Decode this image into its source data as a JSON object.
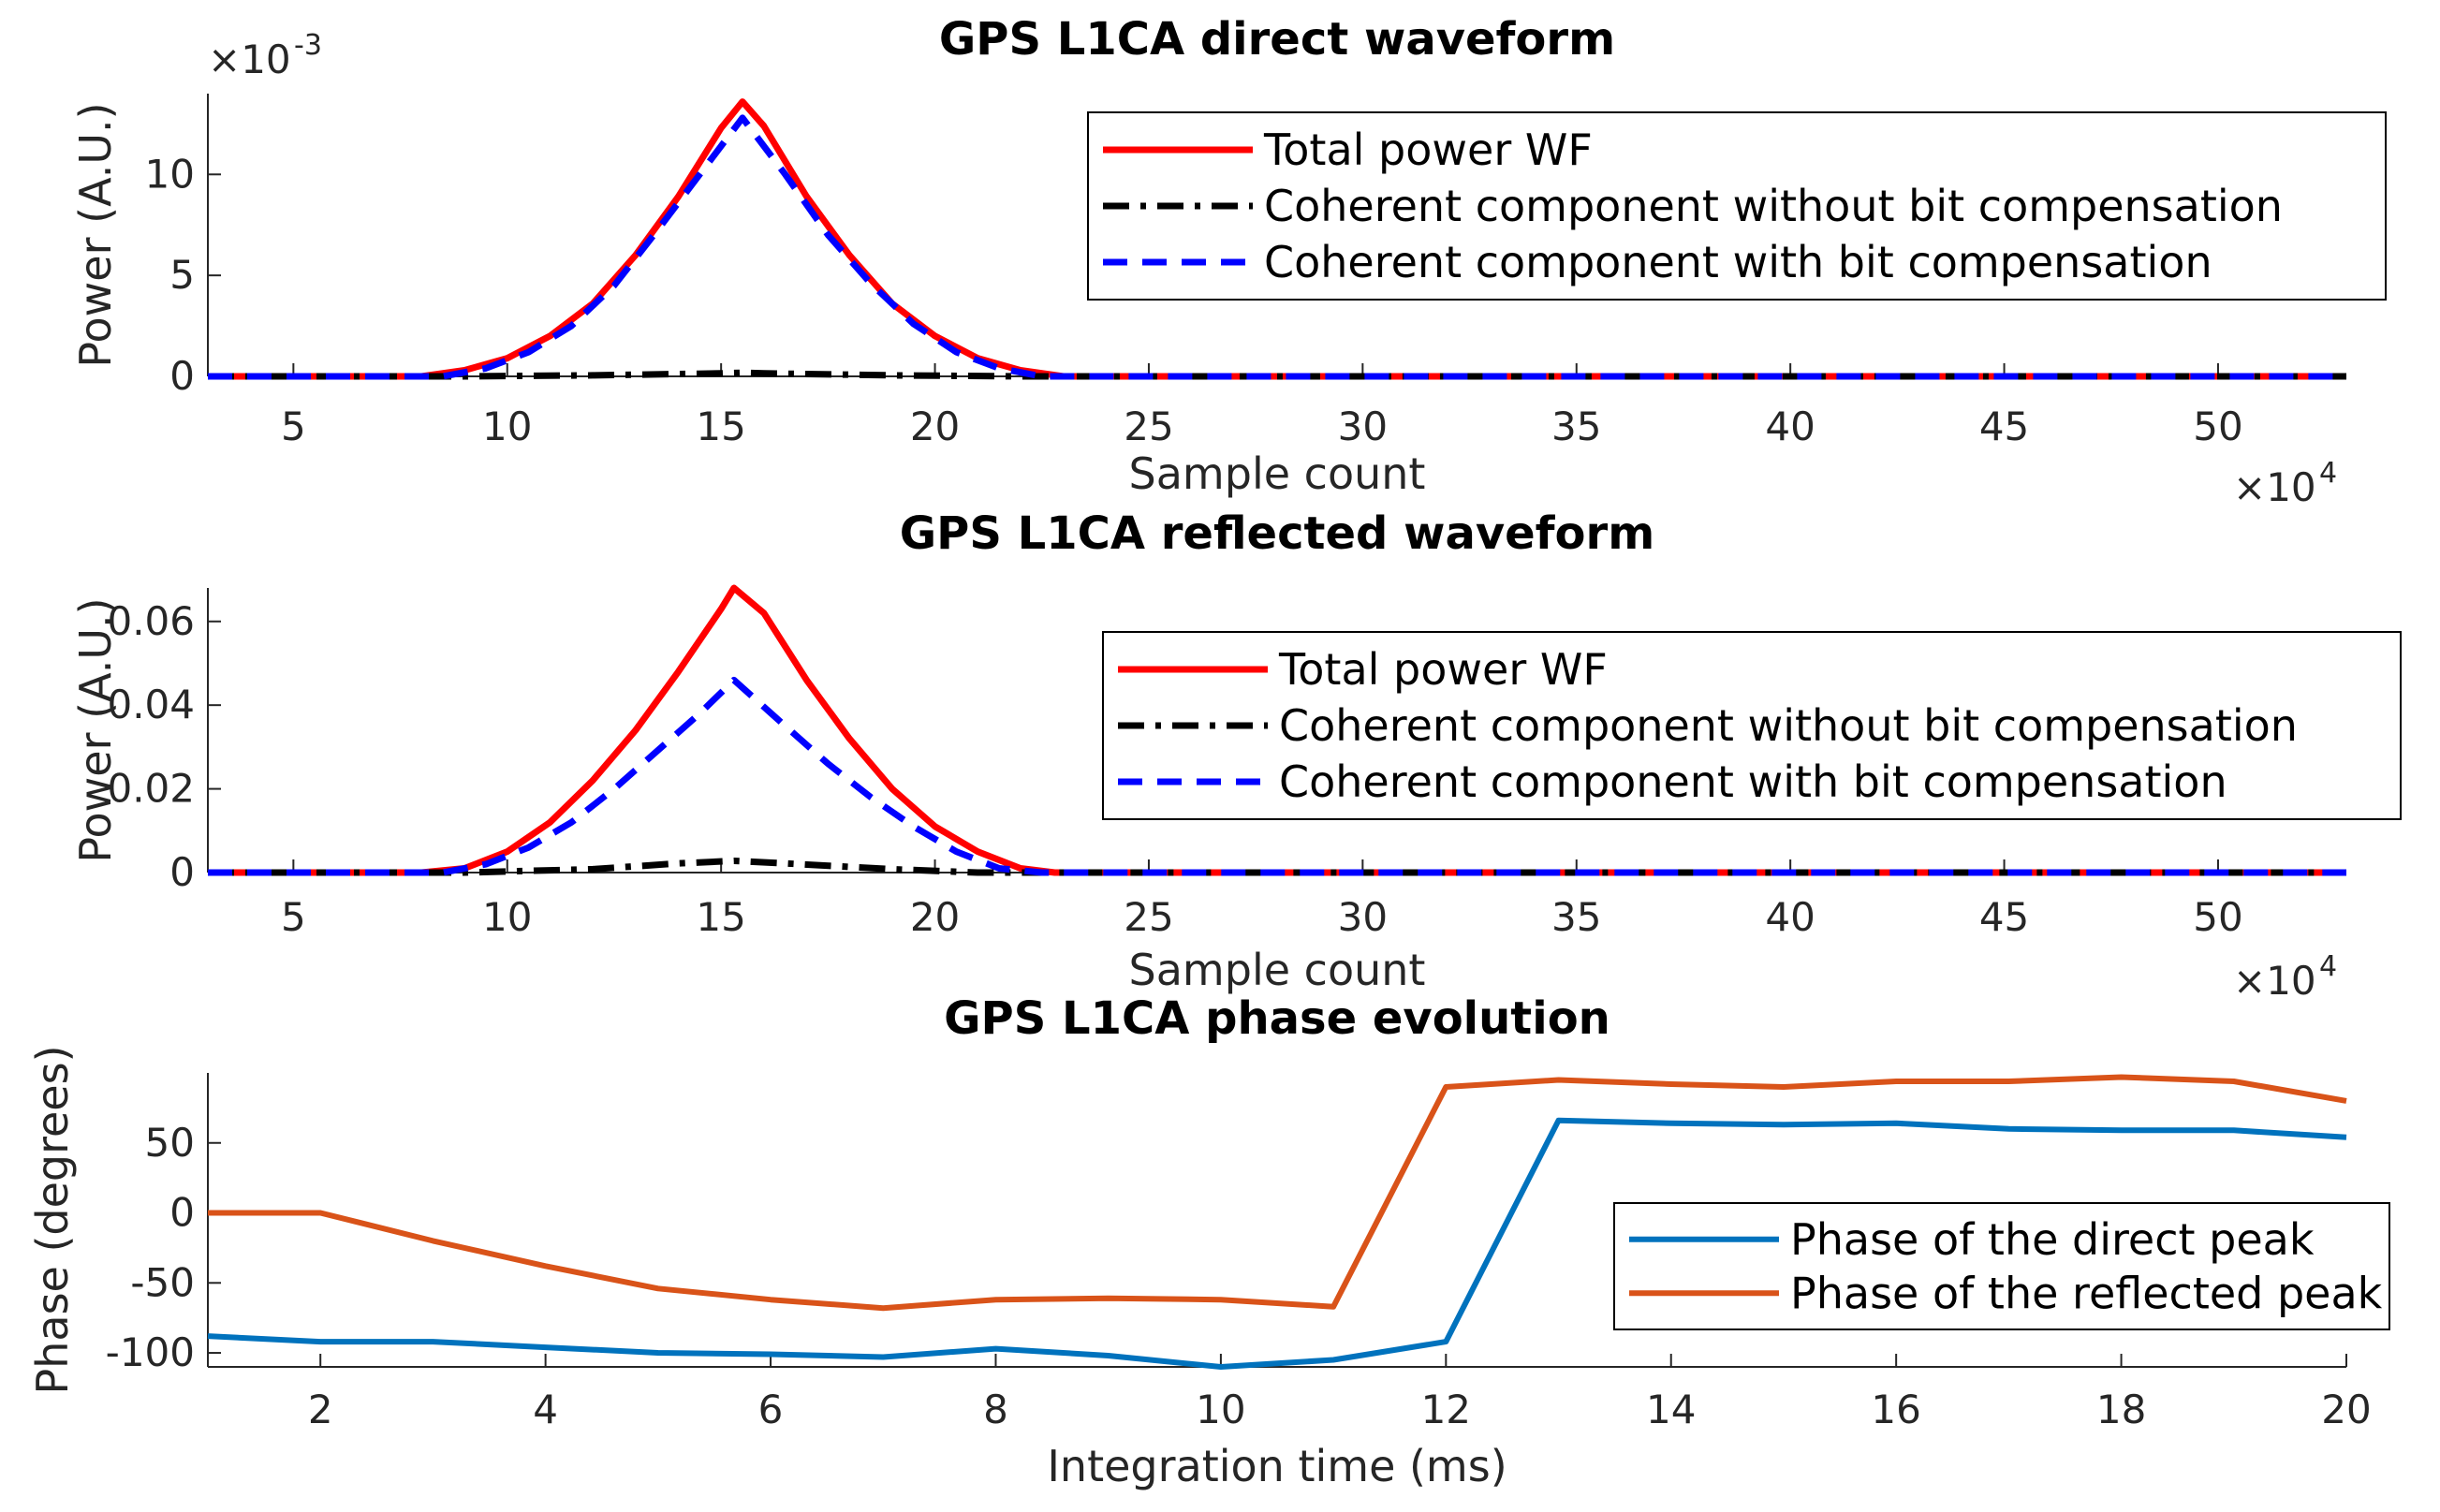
{
  "chart_data": [
    {
      "type": "line",
      "title": "GPS L1CA direct waveform",
      "xlabel": "Sample count",
      "ylabel": "Power (A.U.)",
      "x_exponent_base": "×10",
      "x_exponent_power": "4",
      "y_exponent_base": "×10",
      "y_exponent_power": "-3",
      "xlim": [
        3,
        53
      ],
      "ylim": [
        0,
        14
      ],
      "xticks": [
        5,
        10,
        15,
        20,
        25,
        30,
        35,
        40,
        45,
        50
      ],
      "yticks": [
        0,
        5,
        10
      ],
      "ytick_labels": [
        "0",
        "5",
        "10"
      ],
      "legend_position": "top-right",
      "series": [
        {
          "name": "Total power WF",
          "color": "#ff0000",
          "style": "solid",
          "x": [
            3,
            8,
            9,
            10,
            11,
            12,
            13,
            14,
            15,
            15.5,
            16,
            17,
            18,
            19,
            20,
            21,
            22,
            23,
            53
          ],
          "y": [
            0,
            0,
            0.3,
            0.9,
            2.0,
            3.6,
            6.0,
            8.9,
            12.3,
            13.6,
            12.4,
            8.9,
            6.0,
            3.6,
            2.0,
            0.9,
            0.3,
            0,
            0
          ]
        },
        {
          "name": "Coherent component without bit compensation",
          "color": "#000000",
          "style": "dashdot",
          "x": [
            3,
            9,
            12,
            15,
            15.5,
            16,
            19,
            22,
            53
          ],
          "y": [
            0,
            0,
            0.05,
            0.15,
            0.18,
            0.15,
            0.05,
            0,
            0
          ]
        },
        {
          "name": "Coherent component with bit compensation",
          "color": "#0000ff",
          "style": "dashed",
          "x": [
            3,
            8.5,
            9.5,
            10.5,
            11.5,
            12.5,
            13.5,
            14.5,
            15.5,
            16.5,
            17.5,
            18.5,
            19.5,
            20.5,
            21.5,
            22.5,
            53
          ],
          "y": [
            0,
            0,
            0.4,
            1.2,
            2.5,
            4.5,
            7.2,
            10.0,
            12.8,
            10.0,
            7.0,
            4.6,
            2.6,
            1.2,
            0.4,
            0,
            0
          ]
        }
      ]
    },
    {
      "type": "line",
      "title": "GPS L1CA reflected waveform",
      "xlabel": "Sample count",
      "ylabel": "Power (A.U.)",
      "x_exponent_base": "×10",
      "x_exponent_power": "4",
      "xlim": [
        3,
        53
      ],
      "ylim": [
        0,
        0.068
      ],
      "xticks": [
        5,
        10,
        15,
        20,
        25,
        30,
        35,
        40,
        45,
        50
      ],
      "yticks": [
        0,
        0.02,
        0.04,
        0.06
      ],
      "ytick_labels": [
        "0",
        "0.02",
        "0.04",
        "0.06"
      ],
      "legend_position": "right",
      "series": [
        {
          "name": "Total power WF",
          "color": "#ff0000",
          "style": "solid",
          "x": [
            3,
            8,
            9,
            10,
            11,
            12,
            13,
            14,
            15,
            15.3,
            16,
            17,
            18,
            19,
            20,
            21,
            22,
            22.8,
            53
          ],
          "y": [
            0,
            0,
            0.001,
            0.005,
            0.012,
            0.022,
            0.034,
            0.048,
            0.063,
            0.068,
            0.062,
            0.046,
            0.032,
            0.02,
            0.011,
            0.005,
            0.001,
            0,
            0
          ]
        },
        {
          "name": "Coherent component without bit compensation",
          "color": "#000000",
          "style": "dashdot",
          "x": [
            3,
            9,
            12,
            14,
            15.3,
            16.5,
            19,
            21,
            53
          ],
          "y": [
            0,
            0,
            0.0008,
            0.0022,
            0.0028,
            0.0022,
            0.0008,
            0,
            0
          ]
        },
        {
          "name": "Coherent component with bit compensation",
          "color": "#0000ff",
          "style": "dashed",
          "x": [
            3,
            8.5,
            9.5,
            10.5,
            11.5,
            12.5,
            13.5,
            14.5,
            15.3,
            16.5,
            17.5,
            18.5,
            19.5,
            20.5,
            21.5,
            22.5,
            53
          ],
          "y": [
            0,
            0,
            0.002,
            0.006,
            0.012,
            0.02,
            0.029,
            0.038,
            0.046,
            0.035,
            0.026,
            0.018,
            0.011,
            0.005,
            0.001,
            0,
            0
          ]
        }
      ]
    },
    {
      "type": "line",
      "title": "GPS L1CA phase evolution",
      "xlabel": "Integration time (ms)",
      "ylabel": "Phase (degrees)",
      "xlim": [
        1,
        20
      ],
      "ylim": [
        -110,
        100
      ],
      "xticks": [
        2,
        4,
        6,
        8,
        10,
        12,
        14,
        16,
        18,
        20
      ],
      "yticks": [
        -100,
        -50,
        0,
        50
      ],
      "ytick_labels": [
        "-100",
        "-50",
        "0",
        "50"
      ],
      "legend_position": "bottom-right",
      "series": [
        {
          "name": "Phase of the direct peak",
          "color": "#0072bd",
          "style": "solid",
          "x": [
            1,
            2,
            3,
            4,
            5,
            6,
            7,
            8,
            9,
            10,
            11,
            12,
            13,
            14,
            15,
            16,
            17,
            18,
            19,
            20
          ],
          "y": [
            -88,
            -92,
            -92,
            -96,
            -100,
            -101,
            -103,
            -97,
            -102,
            -110,
            -105,
            -92,
            66,
            64,
            63,
            64,
            60,
            59,
            59,
            54
          ]
        },
        {
          "name": "Phase of the reflected peak",
          "color": "#d95319",
          "style": "solid",
          "x": [
            1,
            2,
            3,
            4,
            5,
            6,
            7,
            8,
            9,
            10,
            11,
            12,
            13,
            14,
            15,
            16,
            17,
            18,
            19,
            20
          ],
          "y": [
            0,
            0,
            -20,
            -38,
            -54,
            -62,
            -68,
            -62,
            -61,
            -62,
            -67,
            90,
            95,
            92,
            90,
            94,
            94,
            97,
            94,
            80
          ]
        }
      ]
    }
  ]
}
